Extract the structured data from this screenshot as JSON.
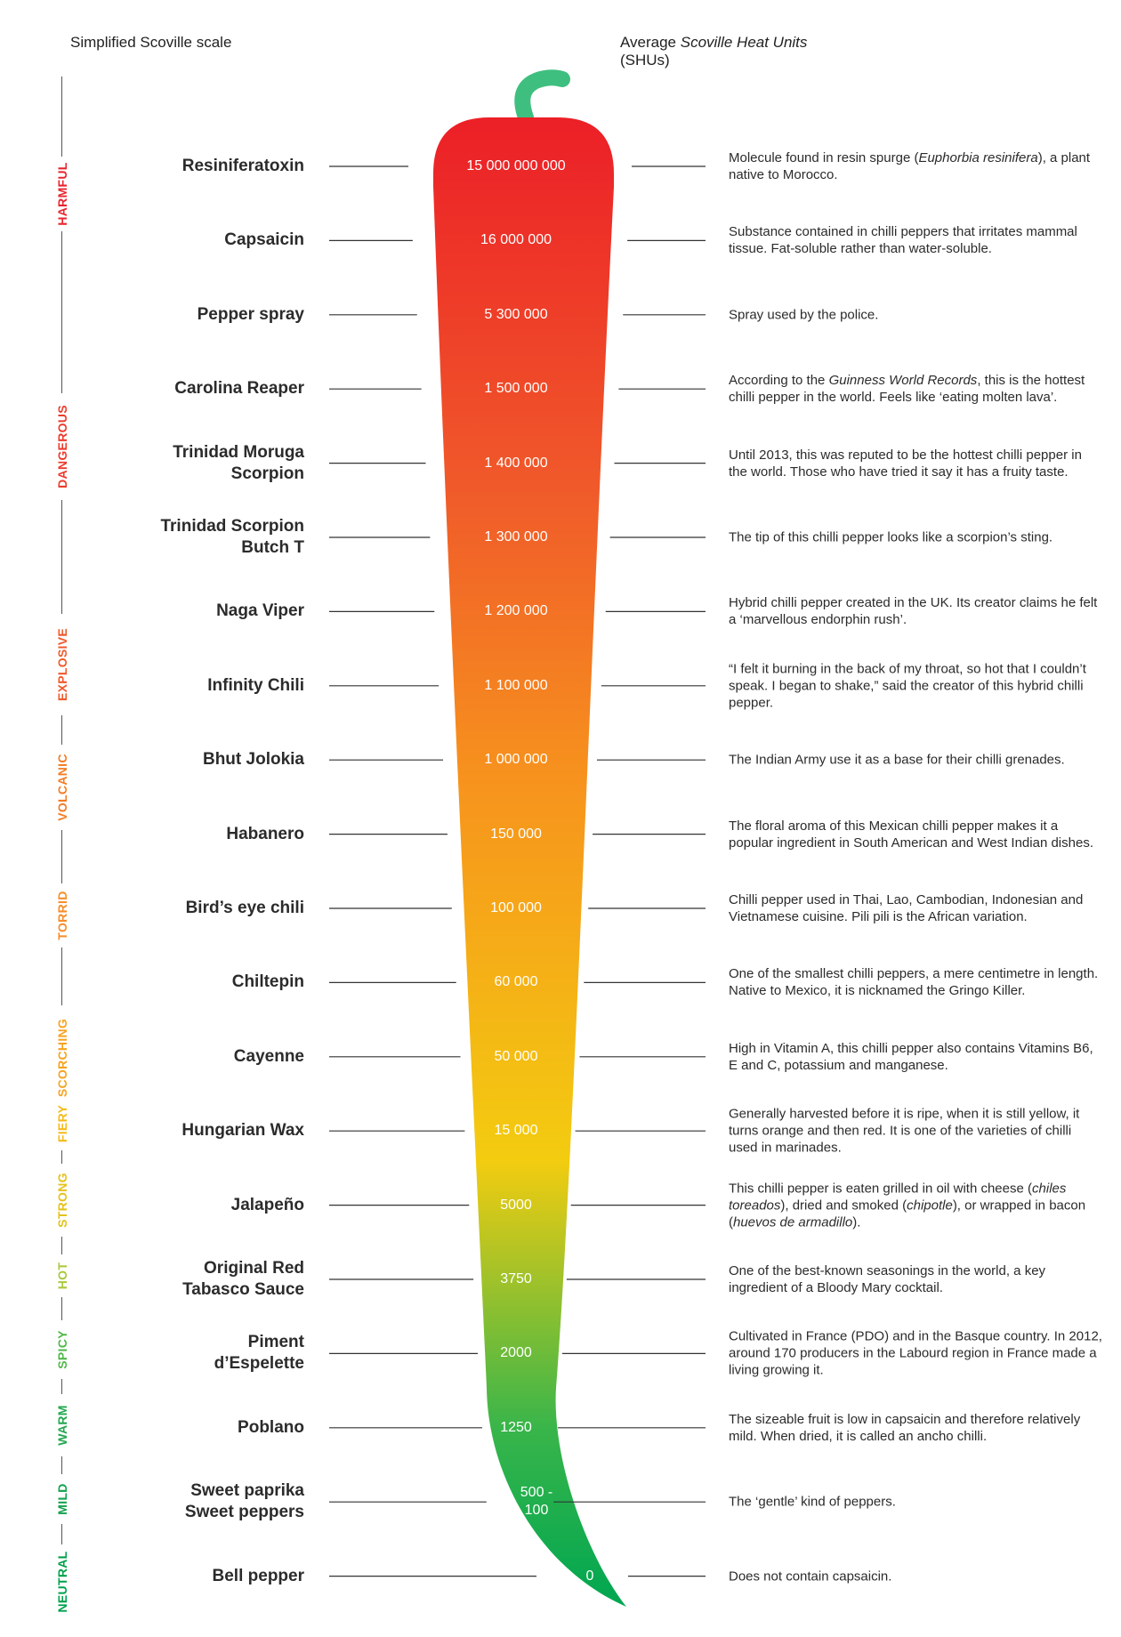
{
  "header": {
    "left": "Simplified Scoville scale",
    "right_prefix": "Average ",
    "right_italic": "Scoville Heat Units",
    "right_suffix": "(SHUs)"
  },
  "colors": {
    "chili_top": "#ec1f27",
    "chili_upper": "#f05a2a",
    "chili_mid": "#f7941d",
    "chili_yellow": "#f3cc10",
    "chili_green": "#39b54a",
    "chili_bottom": "#00a651",
    "stem": "#3fbf7f"
  },
  "scale": [
    {
      "label": "HARMFUL",
      "color": "#e8252e"
    },
    {
      "label": "DANGEROUS",
      "color": "#ec3b2c"
    },
    {
      "label": "EXPLOSIVE",
      "color": "#f0592b"
    },
    {
      "label": "VOLCANIC",
      "color": "#f47c24"
    },
    {
      "label": "TORRID",
      "color": "#f68d2a"
    },
    {
      "label": "SCORCHING",
      "color": "#f7a21f"
    },
    {
      "label": "FIERY",
      "color": "#f4bb1a"
    },
    {
      "label": "STRONG",
      "color": "#e5c21a"
    },
    {
      "label": "HOT",
      "color": "#a8c93a"
    },
    {
      "label": "SPICY",
      "color": "#4fb848"
    },
    {
      "label": "WARM",
      "color": "#23a84f"
    },
    {
      "label": "MILD",
      "color": "#11a14c"
    },
    {
      "label": "NEUTRAL",
      "color": "#00a14b"
    }
  ],
  "peppers": [
    {
      "name": "Resiniferatoxin",
      "shu": "15 000 000 000",
      "desc": "Molecule found in resin spurge (<i>Euphorbia resinifera</i>), a plant native to Morocco."
    },
    {
      "name": "Capsaicin",
      "shu": "16 000 000",
      "desc": "Substance contained in chilli peppers that irritates mammal tissue. Fat-soluble rather than water-soluble."
    },
    {
      "name": "Pepper spray",
      "shu": "5 300 000",
      "desc": "Spray used by the police."
    },
    {
      "name": "Carolina Reaper",
      "shu": "1 500 000",
      "desc": "According to the <i>Guinness World Records</i>, this is the hottest chilli pepper in the world. Feels like ‘eating molten lava’."
    },
    {
      "name": "Trinidad Moruga Scorpion",
      "shu": "1 400 000",
      "desc": "Until 2013, this was reputed to be the hottest chilli pepper in the world. Those who have tried it say it has a fruity taste."
    },
    {
      "name": "Trinidad Scorpion Butch T",
      "shu": "1 300 000",
      "desc": "The tip of this chilli pepper looks like a scorpion’s sting."
    },
    {
      "name": "Naga Viper",
      "shu": "1 200 000",
      "desc": "Hybrid chilli pepper created in the UK. Its creator claims he felt a ‘marvellous endorphin rush’."
    },
    {
      "name": "Infinity Chili",
      "shu": "1 100 000",
      "desc": "“I felt it burning in the back of my throat, so hot that I couldn’t speak. I began to shake,” said the creator of this hybrid chilli pepper."
    },
    {
      "name": "Bhut Jolokia",
      "shu": "1 000 000",
      "desc": "The Indian Army use it as a base for their chilli grenades."
    },
    {
      "name": "Habanero",
      "shu": "150 000",
      "desc": "The floral aroma of this Mexican chilli pepper makes it a popular ingredient in South American and West Indian dishes."
    },
    {
      "name": "Bird’s eye chili",
      "shu": "100 000",
      "desc": "Chilli pepper used in Thai, Lao, Cambodian, Indonesian and Vietnamese cuisine. Pili pili is the African variation."
    },
    {
      "name": "Chiltepin",
      "shu": "60 000",
      "desc": "One of the smallest chilli peppers, a mere centimetre in length. Native to Mexico, it is nicknamed the Gringo Killer."
    },
    {
      "name": "Cayenne",
      "shu": "50 000",
      "desc": "High in Vitamin A, this chilli pepper also contains Vitamins B6, E and C, potassium and manganese."
    },
    {
      "name": "Hungarian Wax",
      "shu": "15 000",
      "desc": "Generally harvested before it is ripe, when it is still yellow, it turns orange and then red. It is one of the varieties of chilli used in marinades."
    },
    {
      "name": "Jalapeño",
      "shu": "5000",
      "desc": "This chilli pepper is eaten grilled in oil with cheese (<i>chiles toreados</i>), dried and smoked (<i>chipotle</i>), or wrapped in bacon (<i>huevos de armadillo</i>)."
    },
    {
      "name": "Original Red Tabasco Sauce",
      "shu": "3750",
      "desc": "One of the best-known seasonings in the world, a key ingredient of a Bloody Mary cocktail."
    },
    {
      "name": "Piment d’Espelette",
      "shu": "2000",
      "desc": "Cultivated in France (PDO) and in the Basque country. In 2012, around 170 producers in the Labourd region in France made a living growing it."
    },
    {
      "name": "Poblano",
      "shu": "1250",
      "desc": "The sizeable fruit is low in capsaicin and therefore relatively mild. When dried, it is called an ancho chilli."
    },
    {
      "name": "Sweet paprika Sweet peppers",
      "shu": "500 - 100",
      "desc": "The ‘gentle’ kind of peppers."
    },
    {
      "name": "Bell pepper",
      "shu": "0",
      "desc": "Does not contain capsaicin."
    }
  ]
}
